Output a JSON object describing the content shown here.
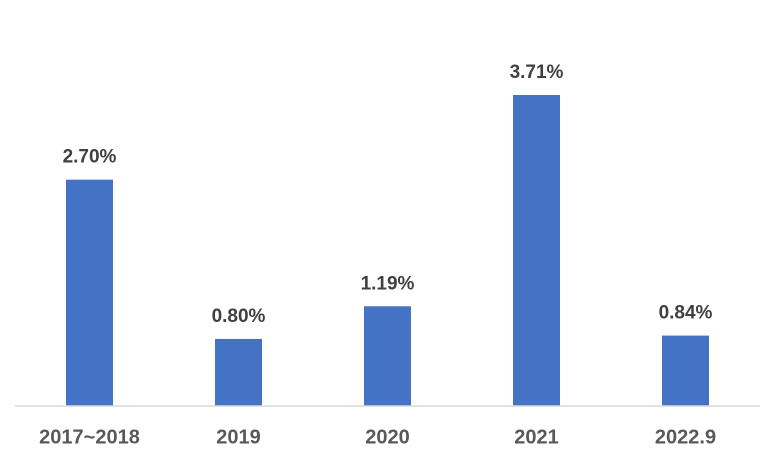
{
  "chart_data": {
    "type": "bar",
    "categories": [
      "2017~2018",
      "2019",
      "2020",
      "2021",
      "2022.9"
    ],
    "values": [
      2.7,
      0.8,
      1.19,
      3.71,
      0.84
    ],
    "value_labels": [
      "2.70%",
      "0.80%",
      "1.19%",
      "3.71%",
      "0.84%"
    ],
    "color": "#4472c4"
  }
}
